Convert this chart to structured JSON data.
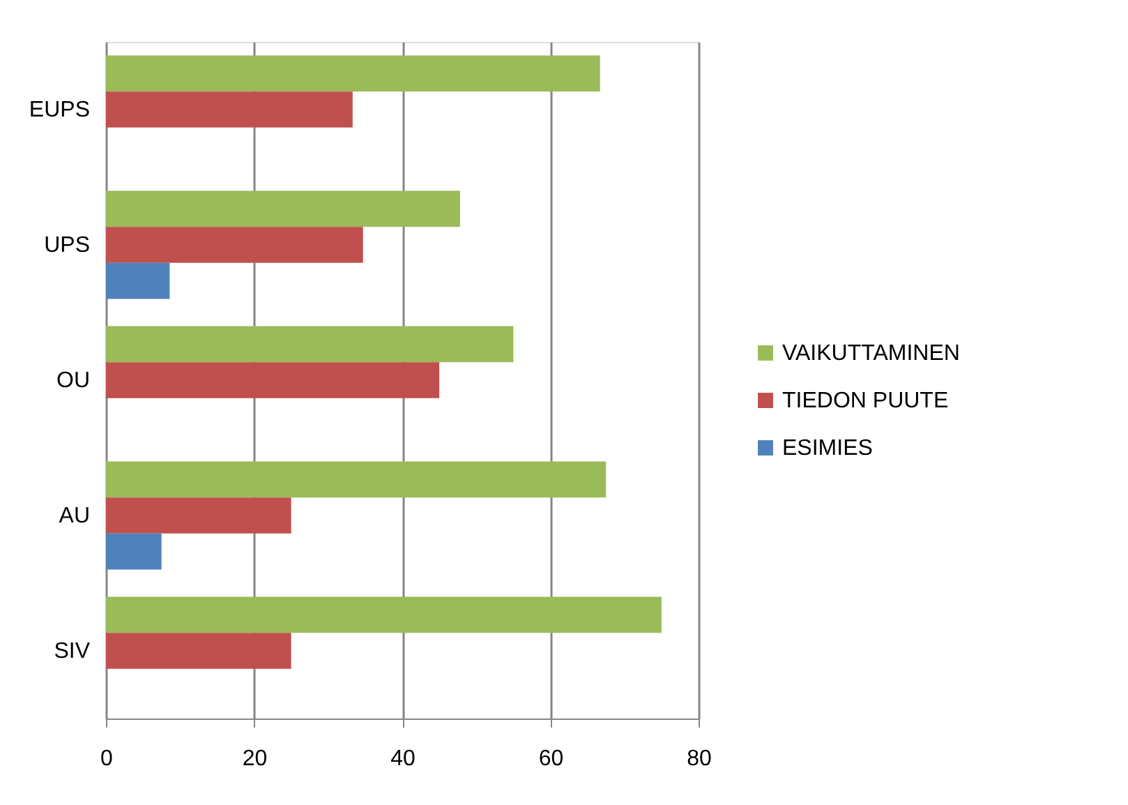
{
  "chart_data": {
    "type": "bar",
    "orientation": "horizontal",
    "categories": [
      "EUPS",
      "UPS",
      "OU",
      "AU",
      "SIV"
    ],
    "series": [
      {
        "name": "VAIKUTTAMINEN",
        "color": "#9bbb59",
        "values": [
          66.7,
          47.8,
          55,
          67.5,
          75
        ]
      },
      {
        "name": "TIEDON PUUTE",
        "color": "#c0504d",
        "values": [
          33.3,
          34.7,
          45,
          25,
          25
        ]
      },
      {
        "name": "ESIMIES",
        "color": "#4f81bd",
        "values": [
          null,
          8.6,
          null,
          7.5,
          null
        ]
      }
    ],
    "xlim": [
      0,
      80
    ],
    "xticks": [
      0,
      20,
      40,
      60,
      80
    ],
    "grid": "x",
    "legend": "right"
  }
}
